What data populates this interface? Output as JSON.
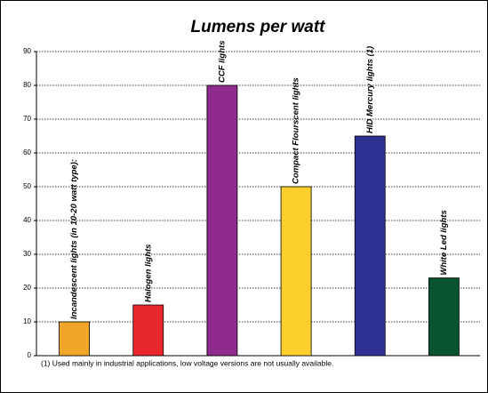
{
  "chart_data": {
    "type": "bar",
    "title": "Lumens per watt",
    "categories": [
      "Incandescent lights (in 10-20 watt type):",
      "Halogen lights",
      "CCF lights",
      "Compact Flourscent lights",
      "HID Mercury lights (1)",
      "White Led lights"
    ],
    "values": [
      10,
      15,
      80,
      50,
      65,
      23
    ],
    "colors": [
      "#f2a629",
      "#e8282c",
      "#8e2b8c",
      "#fccf2c",
      "#2e3192",
      "#0a5330"
    ],
    "ylim": [
      0,
      90
    ],
    "yticks": [
      0,
      10,
      20,
      30,
      40,
      50,
      60,
      70,
      80,
      90
    ],
    "grid": true,
    "annotation": "(1) Used mainly in industrial applications, low voltage versions are not usually available."
  }
}
